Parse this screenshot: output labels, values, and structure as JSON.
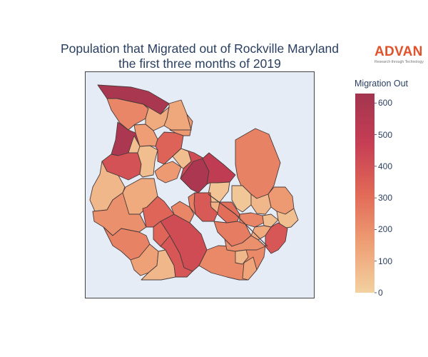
{
  "title_line1": "Population that Migrated out of Rockville Maryland",
  "title_line2": "the first three months of 2019",
  "logo": {
    "word": "ADVAN",
    "tagline": "Research through Technology",
    "color": "#e0522b"
  },
  "colorbar": {
    "title": "Migration Out",
    "min": 0,
    "max": 630,
    "ticks": [
      0,
      100,
      200,
      300,
      400,
      500,
      600
    ],
    "colorscale": [
      "#f3d1a0",
      "#ee9e74",
      "#e16957",
      "#c63e54",
      "#a3354f"
    ]
  },
  "background_color": "#e5ecf6",
  "chart_data": {
    "type": "choropleth",
    "color_variable": "Migration Out",
    "range": [
      0,
      630
    ],
    "region_values": [
      600,
      230,
      120,
      130,
      590,
      400,
      60,
      160,
      340,
      420,
      170,
      60,
      80,
      590,
      500,
      40,
      240,
      120,
      370,
      300,
      30,
      80,
      170,
      230,
      60,
      60,
      120,
      380,
      260,
      420,
      330,
      200,
      240,
      150,
      80,
      380,
      220,
      200,
      230,
      250,
      330,
      170,
      60,
      140,
      80,
      100
    ]
  }
}
